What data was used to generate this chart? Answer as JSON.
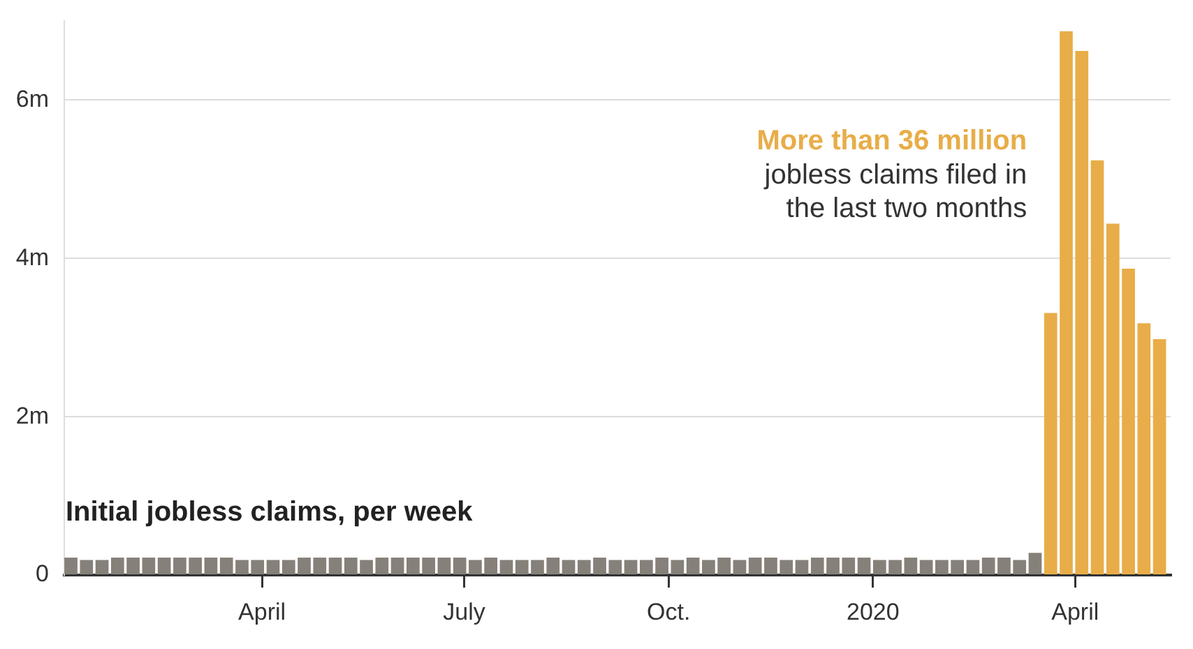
{
  "chart_data": {
    "type": "bar",
    "title": "Initial jobless claims, per week",
    "annotations": [
      "More than 36 million",
      "jobless claims filed in the last two months"
    ],
    "series": [
      {
        "color": "#858079",
        "x": [
          "2019-01-05",
          "2019-01-12",
          "2019-01-19",
          "2019-01-26",
          "2019-02-02",
          "2019-02-09",
          "2019-02-16",
          "2019-02-23",
          "2019-03-02",
          "2019-03-09",
          "2019-03-16",
          "2019-03-23",
          "2019-03-30",
          "2019-04-06",
          "2019-04-13",
          "2019-04-20",
          "2019-04-27",
          "2019-05-04",
          "2019-05-11",
          "2019-05-18",
          "2019-05-25",
          "2019-06-01",
          "2019-06-08",
          "2019-06-15",
          "2019-06-22",
          "2019-06-29",
          "2019-07-06",
          "2019-07-13",
          "2019-07-20",
          "2019-07-27",
          "2019-08-03",
          "2019-08-10",
          "2019-08-17",
          "2019-08-24",
          "2019-08-31",
          "2019-09-07",
          "2019-09-14",
          "2019-09-21",
          "2019-09-28",
          "2019-10-05",
          "2019-10-12",
          "2019-10-19",
          "2019-10-26",
          "2019-11-02",
          "2019-11-09",
          "2019-11-16",
          "2019-11-23",
          "2019-11-30",
          "2019-12-07",
          "2019-12-14",
          "2019-12-21",
          "2019-12-28",
          "2020-01-04",
          "2020-01-11",
          "2020-01-18",
          "2020-01-25",
          "2020-02-01",
          "2020-02-08",
          "2020-02-15",
          "2020-02-22",
          "2020-02-29",
          "2020-03-07",
          "2020-03-14"
        ],
        "values": [
          0.22,
          0.19,
          0.19,
          0.22,
          0.22,
          0.22,
          0.22,
          0.22,
          0.22,
          0.22,
          0.22,
          0.19,
          0.19,
          0.19,
          0.19,
          0.22,
          0.22,
          0.22,
          0.22,
          0.19,
          0.22,
          0.22,
          0.22,
          0.22,
          0.22,
          0.22,
          0.19,
          0.22,
          0.19,
          0.19,
          0.19,
          0.22,
          0.19,
          0.19,
          0.22,
          0.19,
          0.19,
          0.19,
          0.22,
          0.19,
          0.22,
          0.19,
          0.22,
          0.19,
          0.22,
          0.22,
          0.19,
          0.19,
          0.22,
          0.22,
          0.22,
          0.22,
          0.19,
          0.19,
          0.22,
          0.19,
          0.19,
          0.19,
          0.19,
          0.22,
          0.22,
          0.19,
          0.28
        ]
      },
      {
        "color": "#e8ad48",
        "x": [
          "2020-03-21",
          "2020-03-28",
          "2020-04-04",
          "2020-04-11",
          "2020-04-18",
          "2020-04-25",
          "2020-05-02",
          "2020-05-09"
        ],
        "values": [
          3.31,
          6.87,
          6.62,
          5.24,
          4.44,
          3.87,
          3.18,
          2.98
        ]
      }
    ],
    "xlim": [
      "2019-01-02",
      "2020-05-14"
    ],
    "xticks": [
      {
        "value": "2019-04-01",
        "label": "April"
      },
      {
        "value": "2019-07-01",
        "label": "July"
      },
      {
        "value": "2019-10-01",
        "label": "Oct."
      },
      {
        "value": "2020-01-01",
        "label": "2020"
      },
      {
        "value": "2020-04-01",
        "label": "April"
      }
    ],
    "ylim": [
      0,
      7
    ],
    "yticks": [
      0,
      {
        "value": 2,
        "label": "2m"
      },
      {
        "value": 4,
        "label": "4m"
      },
      {
        "value": 6,
        "label": "6m"
      }
    ],
    "grid": "y"
  }
}
